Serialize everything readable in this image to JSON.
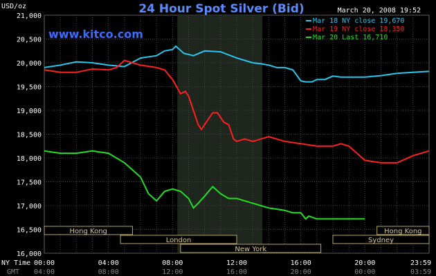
{
  "chart_data": {
    "type": "line",
    "title": "24 Hour Spot Silver (Bid)",
    "website": "www.kitco.com",
    "timestamp": "March 20, 2008 19:52",
    "ylabel": "USD/oz",
    "ylim": [
      16000,
      21000
    ],
    "yticks": [
      "16,000",
      "16,500",
      "17,000",
      "17,500",
      "18,000",
      "18,500",
      "19,000",
      "19,500",
      "20,000",
      "20,500",
      "21,000"
    ],
    "yvalues": [
      16000,
      16500,
      17000,
      17500,
      18000,
      18500,
      19000,
      19500,
      20000,
      20500,
      21000
    ],
    "xlim": [
      0,
      24
    ],
    "xticks_ny": [
      "00:00",
      "04:00",
      "08:00",
      "12:00",
      "16:00",
      "20:00",
      "23:59"
    ],
    "xticks_gmt": [
      "04:00",
      "08:00",
      "12:00",
      "16:00",
      "20:00",
      "00:00",
      "03:59"
    ],
    "xtick_hours": [
      0,
      4,
      8,
      12,
      16,
      20,
      24
    ],
    "x_row_labels": {
      "ny": "NY Time",
      "gmt": "GMT"
    },
    "grid": true,
    "highlight_hours": [
      8.3,
      13.6
    ],
    "legend_position": "top-right",
    "sessions": [
      {
        "name": "Hong Kong",
        "start": 0,
        "end": 11
      },
      {
        "name": "London",
        "start": 9.5,
        "end": 24
      },
      {
        "name": "New York",
        "start": 17,
        "end": 34.5
      },
      {
        "name": "Hong Kong",
        "start": 41.5,
        "end": 48
      },
      {
        "name": "Sydney",
        "start": 36,
        "end": 48
      }
    ],
    "session_axis_max": 48,
    "series": [
      {
        "name": "Mar 18 NY close 19,670",
        "color": "#27c8f0",
        "x": [
          0,
          1,
          2,
          3,
          4,
          5,
          6,
          7,
          7.5,
          8,
          8.2,
          8.7,
          9.3,
          10,
          11,
          12,
          12.5,
          13,
          13.5,
          14,
          14.5,
          15,
          15.5,
          16,
          16.3,
          16.7,
          17,
          17.5,
          18,
          18.5,
          19,
          20,
          21,
          22,
          23,
          24
        ],
        "y": [
          19900,
          19950,
          20020,
          20000,
          19950,
          19920,
          20100,
          20150,
          20250,
          20280,
          20350,
          20200,
          20150,
          20250,
          20230,
          20100,
          20050,
          20000,
          19980,
          19950,
          19900,
          19900,
          19850,
          19620,
          19600,
          19600,
          19650,
          19650,
          19720,
          19700,
          19700,
          19700,
          19730,
          19780,
          19800,
          19820
        ]
      },
      {
        "name": "Mar 19 NY close 18,350",
        "color": "#ff2020",
        "x": [
          0,
          1,
          2,
          3,
          4,
          4.5,
          5,
          6,
          7,
          7.5,
          8,
          8.5,
          8.8,
          9,
          9.3,
          9.6,
          9.8,
          10,
          10.5,
          10.8,
          11.2,
          11.5,
          11.8,
          12,
          12.5,
          13,
          14,
          15,
          16,
          17,
          18,
          18.5,
          19,
          19.5,
          20,
          21,
          22,
          23,
          24
        ],
        "y": [
          19850,
          19800,
          19800,
          19870,
          19850,
          19900,
          20050,
          19950,
          19900,
          19850,
          19650,
          19350,
          19400,
          19300,
          19000,
          18700,
          18600,
          18700,
          18950,
          18950,
          18750,
          18700,
          18400,
          18350,
          18400,
          18350,
          18450,
          18350,
          18300,
          18250,
          18250,
          18300,
          18250,
          18100,
          17950,
          17900,
          17900,
          18050,
          18150
        ]
      },
      {
        "name": "Mar 20 Last 16,710",
        "color": "#22e022",
        "x": [
          0,
          1,
          2,
          3,
          4,
          4.5,
          5,
          5.5,
          6,
          6.5,
          7,
          7.5,
          8,
          8.5,
          9,
          9.3,
          9.6,
          10,
          10.5,
          11,
          11.5,
          12,
          13,
          14,
          15,
          15.5,
          16,
          16.3,
          16.5,
          17,
          17.5,
          18,
          18.5,
          19,
          20
        ],
        "y": [
          18150,
          18100,
          18100,
          18150,
          18100,
          18000,
          17900,
          17750,
          17600,
          17250,
          17100,
          17300,
          17350,
          17300,
          17150,
          16950,
          17050,
          17200,
          17400,
          17250,
          17150,
          17150,
          17050,
          16950,
          16900,
          16850,
          16850,
          16720,
          16780,
          16720,
          16720,
          16720,
          16720,
          16720,
          16720
        ]
      }
    ]
  }
}
